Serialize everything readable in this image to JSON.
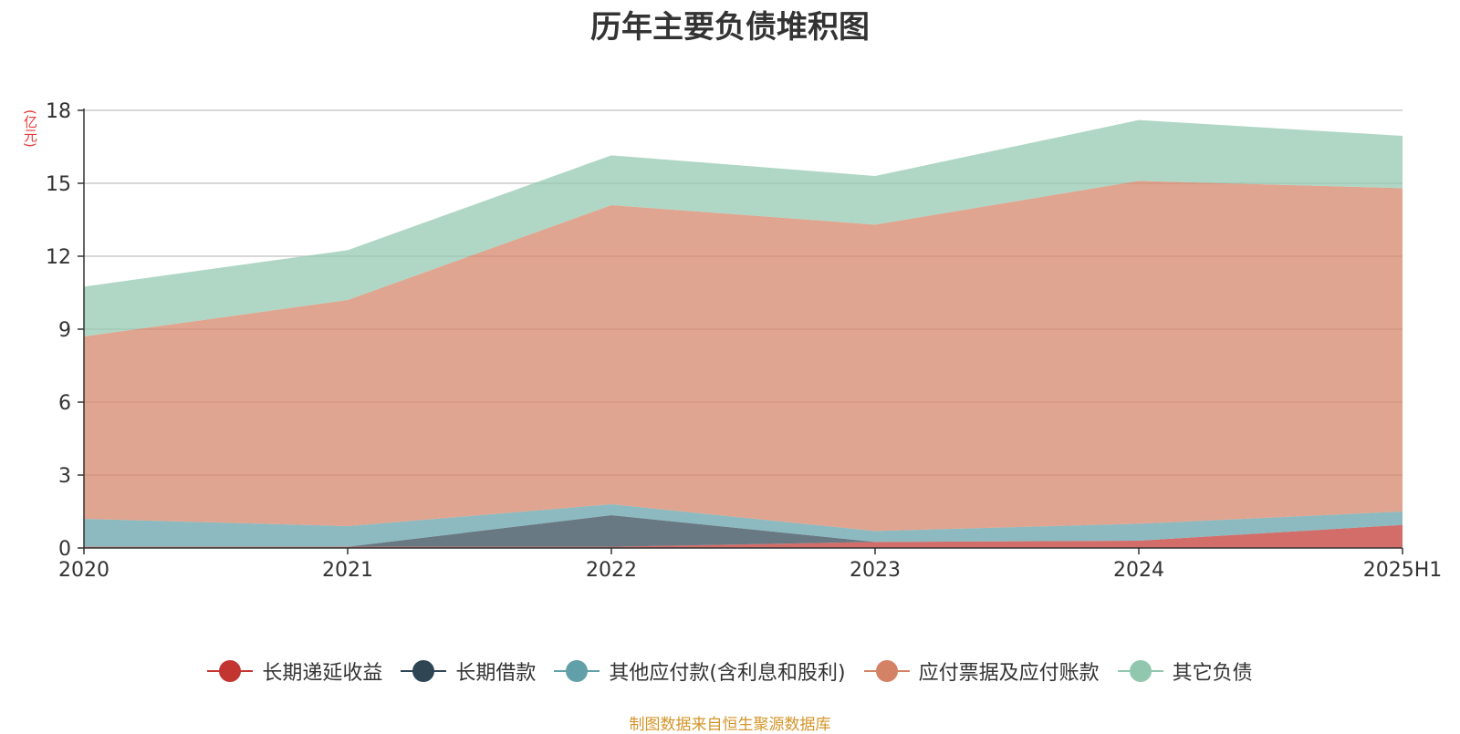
{
  "chart_data": {
    "type": "area",
    "stacked": true,
    "title": "历年主要负债堆积图",
    "unit_label": "(亿元)",
    "categories": [
      "2020",
      "2021",
      "2022",
      "2023",
      "2024",
      "2025H1"
    ],
    "y_ticks": [
      0,
      3,
      6,
      9,
      12,
      15,
      18
    ],
    "ylim": [
      0,
      18
    ],
    "grid": true,
    "legend_position": "bottom",
    "series": [
      {
        "name": "长期递延收益",
        "color": "#c23531",
        "values": [
          0.05,
          0.05,
          0.05,
          0.25,
          0.3,
          0.95
        ]
      },
      {
        "name": "长期借款",
        "color": "#2f4554",
        "values": [
          0.0,
          0.0,
          1.3,
          0.0,
          0.0,
          0.0
        ]
      },
      {
        "name": "其他应付款(含利息和股利)",
        "color": "#61a0a8",
        "values": [
          1.15,
          0.85,
          0.45,
          0.45,
          0.7,
          0.55
        ]
      },
      {
        "name": "应付票据及应付账款",
        "color": "#d48265",
        "values": [
          7.5,
          9.3,
          12.3,
          12.6,
          14.1,
          13.3
        ]
      },
      {
        "name": "其它负债",
        "color": "#91c7ae",
        "values": [
          2.05,
          2.05,
          2.05,
          2.0,
          2.5,
          2.15
        ]
      }
    ]
  },
  "source_note": "制图数据来自恒生聚源数据库"
}
